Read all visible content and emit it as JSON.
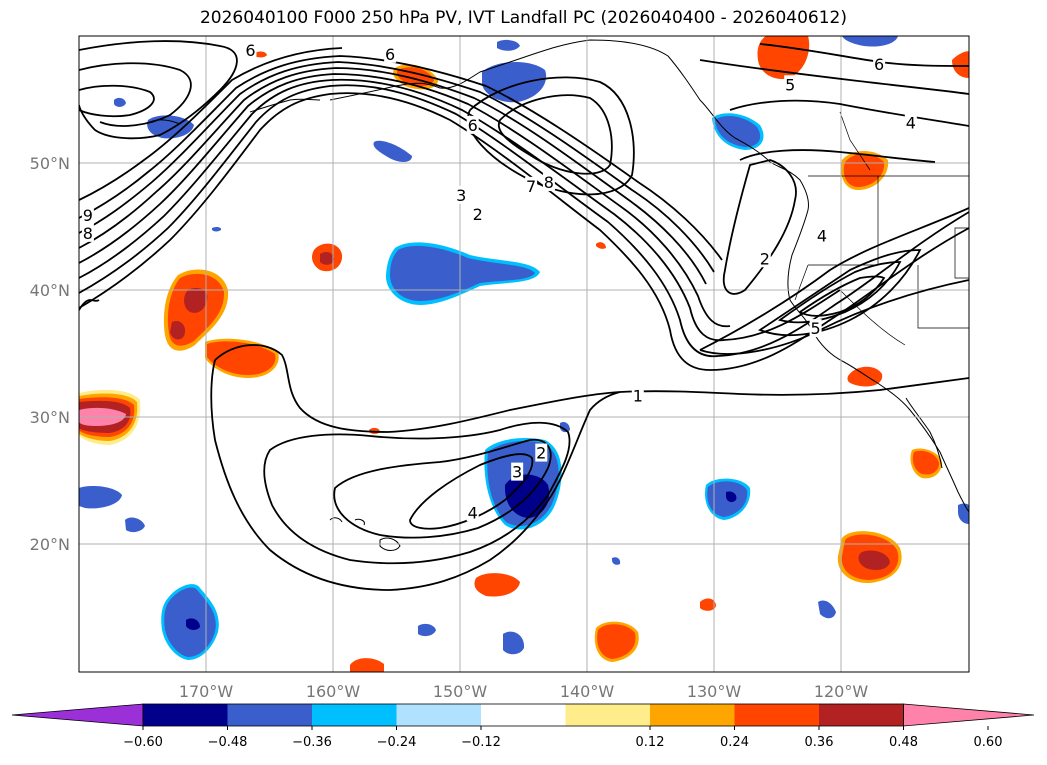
{
  "title": "2026040100 F000 250 hPa PV, IVT Landfall PC (2026040400 - 2026040612)",
  "lat_labels": [
    "50°N",
    "40°N",
    "30°N",
    "20°N"
  ],
  "lon_labels": [
    "170°W",
    "160°W",
    "150°W",
    "140°W",
    "130°W",
    "120°W"
  ],
  "colorbar": {
    "tick_labels": [
      "−0.60",
      "−0.48",
      "−0.36",
      "−0.24",
      "−0.12",
      "0.12",
      "0.24",
      "0.36",
      "0.48",
      "0.60"
    ],
    "colors": [
      "#9b30d9",
      "#00008b",
      "#3a5fcd",
      "#00bfff",
      "#b0e2ff",
      "#ffffff",
      "#ffec8b",
      "#ffa500",
      "#ff4500",
      "#b22222",
      "#ff82ab"
    ]
  },
  "contour_labels": [
    {
      "text": "6",
      "lon": -166.5,
      "lat": 58.9
    },
    {
      "text": "6",
      "lon": -155.5,
      "lat": 58.6
    },
    {
      "text": "6",
      "lon": -149.0,
      "lat": 53.0
    },
    {
      "text": "3",
      "lon": -149.9,
      "lat": 47.5
    },
    {
      "text": "2",
      "lon": -148.6,
      "lat": 46.0
    },
    {
      "text": "7",
      "lon": -144.4,
      "lat": 48.2
    },
    {
      "text": "8",
      "lon": -143.0,
      "lat": 48.5
    },
    {
      "text": "9",
      "lon": -179.3,
      "lat": 45.9
    },
    {
      "text": "8",
      "lon": -179.3,
      "lat": 44.5
    },
    {
      "text": "5",
      "lon": -124.0,
      "lat": 56.2
    },
    {
      "text": "6",
      "lon": -117.0,
      "lat": 57.8
    },
    {
      "text": "4",
      "lon": -114.5,
      "lat": 53.2
    },
    {
      "text": "2",
      "lon": -126.0,
      "lat": 42.5
    },
    {
      "text": "4",
      "lon": -121.5,
      "lat": 44.3
    },
    {
      "text": "5",
      "lon": -122.0,
      "lat": 37.0
    },
    {
      "text": "1",
      "lon": -136.0,
      "lat": 31.7
    },
    {
      "text": "2",
      "lon": -143.6,
      "lat": 27.2
    },
    {
      "text": "3",
      "lon": -145.5,
      "lat": 25.7
    },
    {
      "text": "4",
      "lon": -149.0,
      "lat": 22.5
    }
  ]
}
